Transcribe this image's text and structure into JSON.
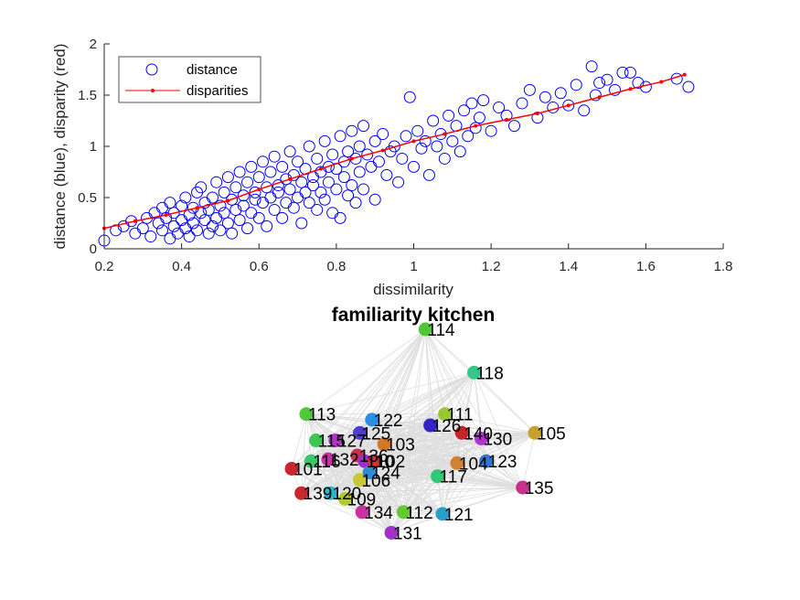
{
  "colors": {
    "distance": "#0000ff",
    "disparity": "#ff0000",
    "axis": "#262626",
    "edge": "#dedede"
  },
  "chart_data": [
    {
      "type": "scatter",
      "xlabel": "dissimilarity",
      "ylabel": "distance (blue), disparity (red)",
      "xlim": [
        0.2,
        1.8
      ],
      "ylim": [
        0,
        2
      ],
      "xticks": [
        "0.2",
        "0.4",
        "0.6",
        "0.8",
        "1",
        "1.2",
        "1.4",
        "1.6",
        "1.8"
      ],
      "yticks": [
        "0",
        "0.5",
        "1",
        "1.5",
        "2"
      ],
      "grid": false,
      "legend_position": "top-left",
      "series": [
        {
          "name": "distance",
          "marker": "open-circle",
          "points": [
            [
              0.2,
              0.08
            ],
            [
              0.23,
              0.18
            ],
            [
              0.25,
              0.22
            ],
            [
              0.27,
              0.27
            ],
            [
              0.28,
              0.15
            ],
            [
              0.3,
              0.2
            ],
            [
              0.31,
              0.3
            ],
            [
              0.32,
              0.12
            ],
            [
              0.33,
              0.35
            ],
            [
              0.34,
              0.25
            ],
            [
              0.35,
              0.18
            ],
            [
              0.35,
              0.4
            ],
            [
              0.36,
              0.3
            ],
            [
              0.37,
              0.1
            ],
            [
              0.37,
              0.45
            ],
            [
              0.38,
              0.22
            ],
            [
              0.38,
              0.35
            ],
            [
              0.39,
              0.15
            ],
            [
              0.4,
              0.28
            ],
            [
              0.4,
              0.42
            ],
            [
              0.41,
              0.2
            ],
            [
              0.41,
              0.5
            ],
            [
              0.42,
              0.33
            ],
            [
              0.42,
              0.12
            ],
            [
              0.43,
              0.4
            ],
            [
              0.43,
              0.25
            ],
            [
              0.44,
              0.55
            ],
            [
              0.44,
              0.18
            ],
            [
              0.45,
              0.35
            ],
            [
              0.45,
              0.6
            ],
            [
              0.46,
              0.28
            ],
            [
              0.46,
              0.45
            ],
            [
              0.47,
              0.15
            ],
            [
              0.47,
              0.38
            ],
            [
              0.48,
              0.5
            ],
            [
              0.48,
              0.22
            ],
            [
              0.49,
              0.65
            ],
            [
              0.49,
              0.3
            ],
            [
              0.5,
              0.42
            ],
            [
              0.5,
              0.18
            ],
            [
              0.51,
              0.55
            ],
            [
              0.51,
              0.35
            ],
            [
              0.52,
              0.7
            ],
            [
              0.52,
              0.25
            ],
            [
              0.53,
              0.48
            ],
            [
              0.53,
              0.15
            ],
            [
              0.54,
              0.6
            ],
            [
              0.54,
              0.38
            ],
            [
              0.55,
              0.75
            ],
            [
              0.55,
              0.28
            ],
            [
              0.56,
              0.52
            ],
            [
              0.56,
              0.42
            ],
            [
              0.57,
              0.65
            ],
            [
              0.57,
              0.2
            ],
            [
              0.58,
              0.8
            ],
            [
              0.58,
              0.35
            ],
            [
              0.59,
              0.55
            ],
            [
              0.59,
              0.48
            ],
            [
              0.6,
              0.7
            ],
            [
              0.6,
              0.3
            ],
            [
              0.61,
              0.85
            ],
            [
              0.61,
              0.45
            ],
            [
              0.62,
              0.6
            ],
            [
              0.62,
              0.22
            ],
            [
              0.63,
              0.75
            ],
            [
              0.63,
              0.5
            ],
            [
              0.64,
              0.9
            ],
            [
              0.64,
              0.38
            ],
            [
              0.65,
              0.62
            ],
            [
              0.65,
              0.55
            ],
            [
              0.66,
              0.8
            ],
            [
              0.66,
              0.3
            ],
            [
              0.67,
              0.68
            ],
            [
              0.67,
              0.45
            ],
            [
              0.68,
              0.95
            ],
            [
              0.68,
              0.58
            ],
            [
              0.69,
              0.72
            ],
            [
              0.69,
              0.4
            ],
            [
              0.7,
              0.85
            ],
            [
              0.7,
              0.5
            ],
            [
              0.71,
              0.65
            ],
            [
              0.71,
              0.25
            ],
            [
              0.72,
              0.78
            ],
            [
              0.72,
              0.55
            ],
            [
              0.73,
              1.0
            ],
            [
              0.73,
              0.45
            ],
            [
              0.74,
              0.7
            ],
            [
              0.74,
              0.62
            ],
            [
              0.75,
              0.88
            ],
            [
              0.75,
              0.38
            ],
            [
              0.76,
              0.75
            ],
            [
              0.76,
              0.55
            ],
            [
              0.77,
              1.05
            ],
            [
              0.77,
              0.48
            ],
            [
              0.78,
              0.8
            ],
            [
              0.78,
              0.65
            ],
            [
              0.79,
              0.92
            ],
            [
              0.79,
              0.35
            ],
            [
              0.8,
              0.78
            ],
            [
              0.8,
              0.58
            ],
            [
              0.81,
              1.1
            ],
            [
              0.81,
              0.3
            ],
            [
              0.82,
              0.85
            ],
            [
              0.82,
              0.7
            ],
            [
              0.83,
              0.95
            ],
            [
              0.83,
              0.52
            ],
            [
              0.84,
              1.15
            ],
            [
              0.84,
              0.62
            ],
            [
              0.85,
              0.88
            ],
            [
              0.85,
              0.45
            ],
            [
              0.86,
              1.0
            ],
            [
              0.86,
              0.75
            ],
            [
              0.87,
              1.2
            ],
            [
              0.87,
              0.58
            ],
            [
              0.88,
              0.92
            ],
            [
              0.89,
              0.8
            ],
            [
              0.9,
              1.05
            ],
            [
              0.9,
              0.48
            ],
            [
              0.91,
              0.85
            ],
            [
              0.92,
              1.12
            ],
            [
              0.93,
              0.72
            ],
            [
              0.94,
              0.95
            ],
            [
              0.95,
              1.0
            ],
            [
              0.96,
              0.65
            ],
            [
              0.97,
              0.88
            ],
            [
              0.98,
              1.1
            ],
            [
              0.99,
              1.48
            ],
            [
              1.0,
              0.8
            ],
            [
              1.01,
              1.15
            ],
            [
              1.02,
              0.98
            ],
            [
              1.03,
              1.05
            ],
            [
              1.04,
              0.72
            ],
            [
              1.05,
              1.25
            ],
            [
              1.06,
              1.0
            ],
            [
              1.07,
              1.12
            ],
            [
              1.08,
              0.88
            ],
            [
              1.09,
              1.3
            ],
            [
              1.1,
              1.05
            ],
            [
              1.11,
              1.2
            ],
            [
              1.12,
              0.95
            ],
            [
              1.13,
              1.35
            ],
            [
              1.14,
              1.1
            ],
            [
              1.15,
              1.42
            ],
            [
              1.16,
              1.18
            ],
            [
              1.17,
              1.28
            ],
            [
              1.18,
              1.45
            ],
            [
              1.2,
              1.15
            ],
            [
              1.22,
              1.38
            ],
            [
              1.24,
              1.3
            ],
            [
              1.26,
              1.2
            ],
            [
              1.28,
              1.42
            ],
            [
              1.3,
              1.55
            ],
            [
              1.32,
              1.28
            ],
            [
              1.34,
              1.48
            ],
            [
              1.36,
              1.38
            ],
            [
              1.38,
              1.52
            ],
            [
              1.4,
              1.4
            ],
            [
              1.42,
              1.6
            ],
            [
              1.44,
              1.35
            ],
            [
              1.46,
              1.78
            ],
            [
              1.47,
              1.5
            ],
            [
              1.48,
              1.62
            ],
            [
              1.5,
              1.65
            ],
            [
              1.52,
              1.55
            ],
            [
              1.54,
              1.72
            ],
            [
              1.56,
              1.72
            ],
            [
              1.58,
              1.62
            ],
            [
              1.6,
              1.58
            ],
            [
              1.68,
              1.66
            ],
            [
              1.71,
              1.58
            ]
          ]
        },
        {
          "name": "disparities",
          "marker": "dot-line",
          "points": [
            [
              0.2,
              0.2
            ],
            [
              0.28,
              0.27
            ],
            [
              0.36,
              0.33
            ],
            [
              0.44,
              0.4
            ],
            [
              0.52,
              0.47
            ],
            [
              0.6,
              0.58
            ],
            [
              0.68,
              0.68
            ],
            [
              0.76,
              0.78
            ],
            [
              0.84,
              0.88
            ],
            [
              0.92,
              0.96
            ],
            [
              1.0,
              1.05
            ],
            [
              1.08,
              1.12
            ],
            [
              1.16,
              1.2
            ],
            [
              1.24,
              1.26
            ],
            [
              1.32,
              1.32
            ],
            [
              1.4,
              1.4
            ],
            [
              1.48,
              1.48
            ],
            [
              1.56,
              1.56
            ],
            [
              1.64,
              1.63
            ],
            [
              1.7,
              1.7
            ]
          ]
        }
      ]
    },
    {
      "type": "network",
      "title": "familiarity kitchen",
      "nodes": [
        {
          "label": "114",
          "x": 0.55,
          "y": 1.0,
          "color": "#4dc832"
        },
        {
          "label": "118",
          "x": 0.75,
          "y": 0.77,
          "color": "#32c88c"
        },
        {
          "label": "113",
          "x": 0.06,
          "y": 0.55,
          "color": "#50c83c"
        },
        {
          "label": "122",
          "x": 0.33,
          "y": 0.52,
          "color": "#2d8ce6"
        },
        {
          "label": "111",
          "x": 0.63,
          "y": 0.55,
          "color": "#9bc832"
        },
        {
          "label": "126",
          "x": 0.57,
          "y": 0.49,
          "color": "#3223c8"
        },
        {
          "label": "125",
          "x": 0.28,
          "y": 0.45,
          "color": "#503ccd"
        },
        {
          "label": "140",
          "x": 0.7,
          "y": 0.45,
          "color": "#c82328"
        },
        {
          "label": "130",
          "x": 0.78,
          "y": 0.42,
          "color": "#b432d2"
        },
        {
          "label": "105",
          "x": 1.0,
          "y": 0.45,
          "color": "#c8a02d"
        },
        {
          "label": "115",
          "x": 0.1,
          "y": 0.41,
          "color": "#3cc850"
        },
        {
          "label": "127",
          "x": 0.18,
          "y": 0.41,
          "color": "#b432c8"
        },
        {
          "label": "103",
          "x": 0.38,
          "y": 0.39,
          "color": "#d27828"
        },
        {
          "label": "116",
          "x": 0.08,
          "y": 0.3,
          "color": "#37c86e"
        },
        {
          "label": "132",
          "x": 0.15,
          "y": 0.31,
          "color": "#c832a0"
        },
        {
          "label": "136",
          "x": 0.27,
          "y": 0.33,
          "color": "#c83250"
        },
        {
          "label": "110",
          "x": 0.3,
          "y": 0.3,
          "color": "#a02dc8"
        },
        {
          "label": "102",
          "x": 0.34,
          "y": 0.3,
          "color": "#d2323c"
        },
        {
          "label": "101",
          "x": 0.0,
          "y": 0.26,
          "color": "#c8282d"
        },
        {
          "label": "104",
          "x": 0.68,
          "y": 0.29,
          "color": "#d28232"
        },
        {
          "label": "123",
          "x": 0.8,
          "y": 0.3,
          "color": "#2d78d2"
        },
        {
          "label": "106",
          "x": 0.28,
          "y": 0.2,
          "color": "#c8c832"
        },
        {
          "label": "124",
          "x": 0.32,
          "y": 0.24,
          "color": "#2d8cd2"
        },
        {
          "label": "117",
          "x": 0.6,
          "y": 0.22,
          "color": "#32c878"
        },
        {
          "label": "135",
          "x": 0.95,
          "y": 0.16,
          "color": "#c8328c"
        },
        {
          "label": "139",
          "x": 0.04,
          "y": 0.13,
          "color": "#c8282d"
        },
        {
          "label": "120",
          "x": 0.16,
          "y": 0.13,
          "color": "#32b4c8"
        },
        {
          "label": "109",
          "x": 0.22,
          "y": 0.1,
          "color": "#b4c832"
        },
        {
          "label": "134",
          "x": 0.29,
          "y": 0.03,
          "color": "#c832a0"
        },
        {
          "label": "112",
          "x": 0.46,
          "y": 0.03,
          "color": "#64c832"
        },
        {
          "label": "121",
          "x": 0.62,
          "y": 0.02,
          "color": "#28a0c8"
        },
        {
          "label": "131",
          "x": 0.41,
          "y": -0.08,
          "color": "#a032c8"
        }
      ]
    }
  ]
}
